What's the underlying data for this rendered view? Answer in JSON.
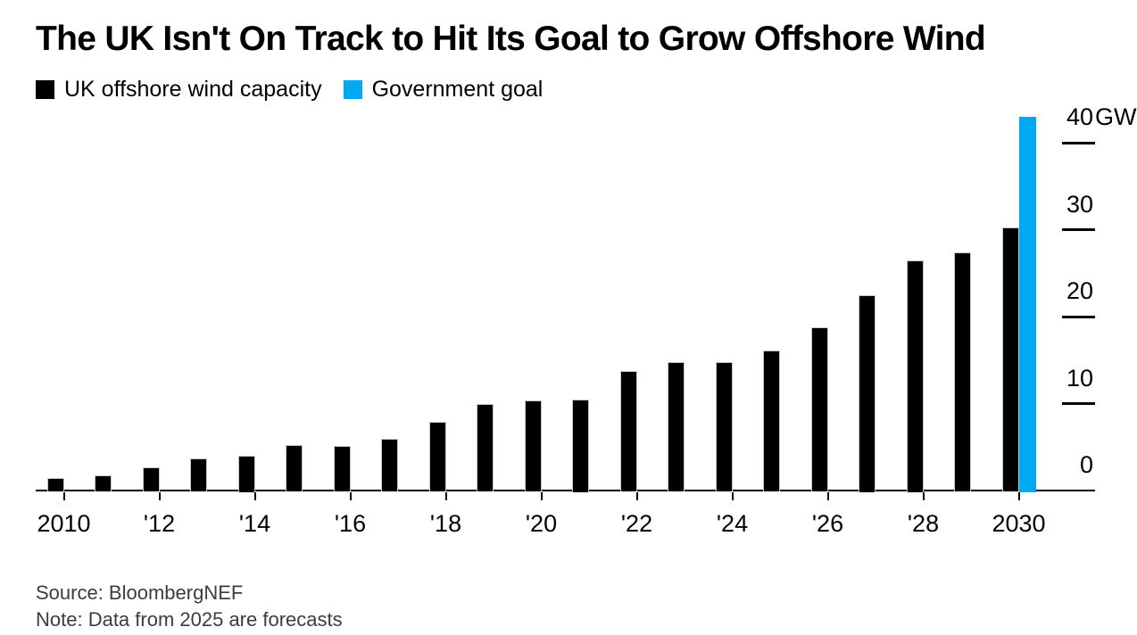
{
  "title": "The UK Isn't On Track to Hit Its Goal to Grow Offshore Wind",
  "legend": {
    "capacity": {
      "label": "UK offshore wind capacity",
      "color": "#000000"
    },
    "goal": {
      "label": "Government goal",
      "color": "#00aaf2"
    }
  },
  "source": "Source: BloombergNEF",
  "note": "Note: Data from 2025 are forecasts",
  "chart_data": {
    "type": "bar",
    "title": "The UK Isn't On Track to Hit Its Goal to Grow Offshore Wind",
    "unit": "GW",
    "categories": [
      2010,
      2011,
      2012,
      2013,
      2014,
      2015,
      2016,
      2017,
      2018,
      2019,
      2020,
      2021,
      2022,
      2023,
      2024,
      2025,
      2026,
      2027,
      2028,
      2029,
      2030
    ],
    "series": [
      {
        "name": "UK offshore wind capacity",
        "color": "#000000",
        "values": [
          1.4,
          1.7,
          2.7,
          3.7,
          4.0,
          5.2,
          5.1,
          5.9,
          7.9,
          9.9,
          10.4,
          10.5,
          13.7,
          14.8,
          14.8,
          16.1,
          18.8,
          22.5,
          26.5,
          27.4,
          30.3
        ]
      }
    ],
    "goal_bar": {
      "name": "Government goal",
      "color": "#00aaf2",
      "value": 43,
      "position": "immediately right of 2030 bar"
    },
    "x_tick_labels": [
      "2010",
      "'12",
      "'14",
      "'16",
      "'18",
      "'20",
      "'22",
      "'24",
      "'26",
      "'28",
      "2030"
    ],
    "x_tick_years": [
      2010,
      2012,
      2014,
      2016,
      2018,
      2020,
      2022,
      2024,
      2026,
      2028,
      2030
    ],
    "y_ticks": [
      0,
      10,
      20,
      30,
      40
    ],
    "y_top_tick_label": "40GW",
    "ylim": [
      0,
      44
    ],
    "grid": false,
    "y_axis_side": "right",
    "legend_position": "top-left",
    "note": "Data from 2025 are forecasts"
  }
}
